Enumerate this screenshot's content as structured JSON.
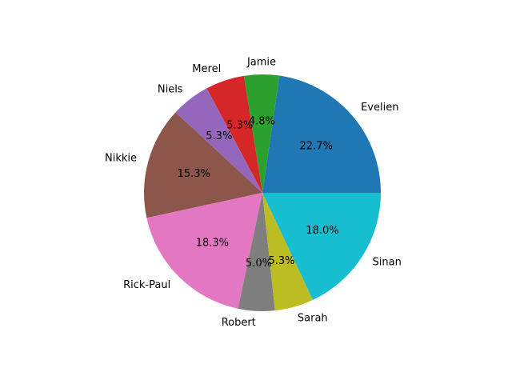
{
  "chart_data": {
    "type": "pie",
    "title": "",
    "start_angle_deg": 0,
    "direction": "counterclockwise",
    "slices": [
      {
        "label": "Evelien",
        "value": 22.7,
        "pct_label": "22.7%",
        "color": "#1f77b4"
      },
      {
        "label": "Jamie",
        "value": 4.8,
        "pct_label": "4.8%",
        "color": "#2ca02c"
      },
      {
        "label": "Merel",
        "value": 5.3,
        "pct_label": "5.3%",
        "color": "#d62728"
      },
      {
        "label": "Niels",
        "value": 5.3,
        "pct_label": "5.3%",
        "color": "#9467bd"
      },
      {
        "label": "Nikkie",
        "value": 15.3,
        "pct_label": "15.3%",
        "color": "#8c564b"
      },
      {
        "label": "Rick-Paul",
        "value": 18.3,
        "pct_label": "18.3%",
        "color": "#e377c2"
      },
      {
        "label": "Robert",
        "value": 5.0,
        "pct_label": "5.0%",
        "color": "#7f7f7f"
      },
      {
        "label": "Sarah",
        "value": 5.3,
        "pct_label": "5.3%",
        "color": "#bcbd22"
      },
      {
        "label": "Sinan",
        "value": 18.0,
        "pct_label": "18.0%",
        "color": "#17becf"
      }
    ]
  }
}
